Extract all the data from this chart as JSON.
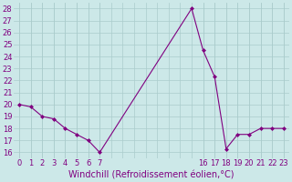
{
  "x": [
    0,
    1,
    2,
    3,
    4,
    5,
    6,
    7,
    15,
    16,
    17,
    18,
    19,
    20,
    21,
    22,
    23
  ],
  "y": [
    20.0,
    19.8,
    19.0,
    18.8,
    18.0,
    17.5,
    17.0,
    16.0,
    28.0,
    24.5,
    22.3,
    16.3,
    17.5,
    17.5,
    18.0,
    18.0,
    18.0
  ],
  "line_color": "#800080",
  "marker": "D",
  "marker_size": 2.0,
  "line_width": 0.8,
  "bg_color": "#cce8e8",
  "grid_color": "#aacccc",
  "xlabel": "Windchill (Refroidissement éolien,°C)",
  "xlabel_color": "#800080",
  "xlabel_fontsize": 7,
  "tick_color": "#800080",
  "tick_fontsize": 6,
  "ylim": [
    15.5,
    28.5
  ],
  "yticks": [
    16,
    17,
    18,
    19,
    20,
    21,
    22,
    23,
    24,
    25,
    26,
    27,
    28
  ],
  "xticks": [
    0,
    1,
    2,
    3,
    4,
    5,
    6,
    7,
    16,
    17,
    18,
    19,
    20,
    21,
    22,
    23
  ],
  "xlim": [
    -0.5,
    23.5
  ]
}
